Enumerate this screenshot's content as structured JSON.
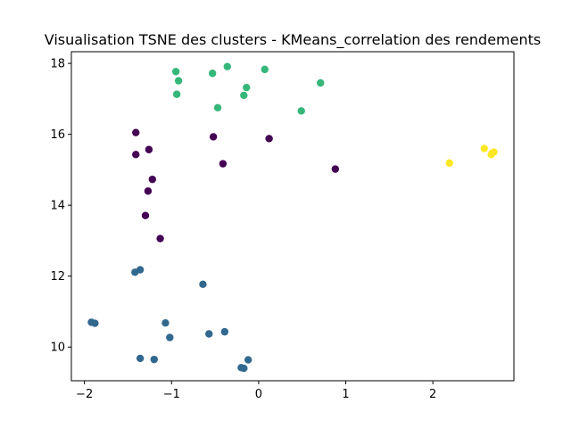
{
  "chart_data": {
    "type": "scatter",
    "title": "Visualisation TSNE des clusters - KMeans_correlation des rendements",
    "xlabel": "",
    "ylabel": "",
    "xlim": [
      -2.15,
      2.93
    ],
    "ylim": [
      9.05,
      18.33
    ],
    "xticks": [
      -2,
      -1,
      0,
      1,
      2
    ],
    "yticks": [
      10,
      12,
      14,
      16,
      18
    ],
    "grid": false,
    "series": [
      {
        "color": "#440154",
        "points": [
          [
            -1.41,
            16.05
          ],
          [
            -1.26,
            15.57
          ],
          [
            -1.41,
            15.43
          ],
          [
            -0.52,
            15.93
          ],
          [
            0.12,
            15.88
          ],
          [
            -0.41,
            15.17
          ],
          [
            0.88,
            15.02
          ],
          [
            -1.22,
            14.73
          ],
          [
            -1.27,
            14.4
          ],
          [
            -1.3,
            13.71
          ],
          [
            -1.13,
            13.06
          ]
        ]
      },
      {
        "color": "#31688e",
        "points": [
          [
            -1.42,
            12.11
          ],
          [
            -1.36,
            12.18
          ],
          [
            -0.64,
            11.77
          ],
          [
            -1.92,
            10.7
          ],
          [
            -1.88,
            10.67
          ],
          [
            -1.07,
            10.68
          ],
          [
            -1.02,
            10.27
          ],
          [
            -0.57,
            10.37
          ],
          [
            -0.39,
            10.43
          ],
          [
            -1.36,
            9.68
          ],
          [
            -1.2,
            9.65
          ],
          [
            -0.12,
            9.64
          ],
          [
            -0.2,
            9.42
          ],
          [
            -0.17,
            9.4
          ]
        ]
      },
      {
        "color": "#35b779",
        "points": [
          [
            -0.95,
            17.77
          ],
          [
            -0.92,
            17.51
          ],
          [
            -0.53,
            17.72
          ],
          [
            -0.36,
            17.91
          ],
          [
            0.07,
            17.83
          ],
          [
            -0.14,
            17.32
          ],
          [
            -0.17,
            17.1
          ],
          [
            -0.94,
            17.13
          ],
          [
            0.71,
            17.45
          ],
          [
            -0.47,
            16.75
          ],
          [
            0.49,
            16.66
          ]
        ]
      },
      {
        "color": "#fde725",
        "points": [
          [
            2.19,
            15.19
          ],
          [
            2.59,
            15.6
          ],
          [
            2.68,
            15.47
          ],
          [
            2.7,
            15.5
          ],
          [
            2.67,
            15.43
          ]
        ]
      }
    ]
  }
}
